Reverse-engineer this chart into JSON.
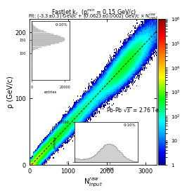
{
  "title_line1": "FastJet k$_t$  (p$_t^{min}$ = 0.15 GeV/c)",
  "title_line2": "Fit: (-3.3±0.3) GeV/c + (0.0623±0.0002) GeV/c × N$_{input}^{raw}$",
  "xlabel": "N$_{input}^{raw}$",
  "ylabel": "ρ (GeV/c)",
  "xlim": [
    0,
    3300
  ],
  "ylim": [
    0,
    220
  ],
  "fit_slope": 0.0623,
  "fit_intercept": -3.3,
  "x_ticks": [
    0,
    1000,
    2000,
    3000
  ],
  "y_ticks": [
    0,
    100,
    200
  ],
  "pb_label": "Pb-Pb $\\sqrt{s}$ = 2.76 TeV",
  "inset_left_label": "0-10%",
  "inset_bottom_label": "0-10%",
  "colorbar_ticklabels": [
    "1",
    "10",
    "10$^2$",
    "10$^3$",
    "10$^4$",
    "10$^5$",
    "10$^6$"
  ],
  "colorbar_ticks": [
    1,
    10,
    100,
    1000,
    10000,
    100000,
    1000000
  ]
}
